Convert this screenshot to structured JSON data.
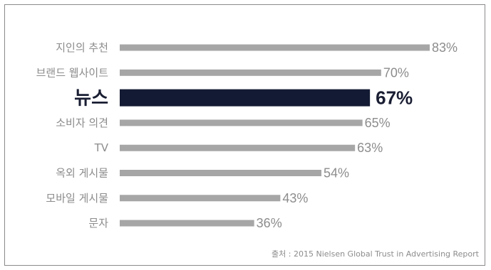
{
  "chart_data": {
    "type": "bar",
    "orientation": "horizontal",
    "categories": [
      "지인의 추천",
      "브랜드 웹사이트",
      "뉴스",
      "소비자 의견",
      "TV",
      "옥외 게시물",
      "모바일 게시물",
      "문자"
    ],
    "values": [
      83,
      70,
      67,
      65,
      63,
      54,
      43,
      36
    ],
    "value_labels": [
      "83%",
      "70%",
      "67%",
      "65%",
      "63%",
      "54%",
      "43%",
      "36%"
    ],
    "highlight_index": 2,
    "xlim": [
      0,
      100
    ],
    "grid": false,
    "colors": {
      "bar": "#a6a6a6",
      "highlight": "#131a33",
      "label": "#8c8c8c"
    },
    "source": "출처 : 2015 Nielsen Global Trust in Advertising Report"
  }
}
